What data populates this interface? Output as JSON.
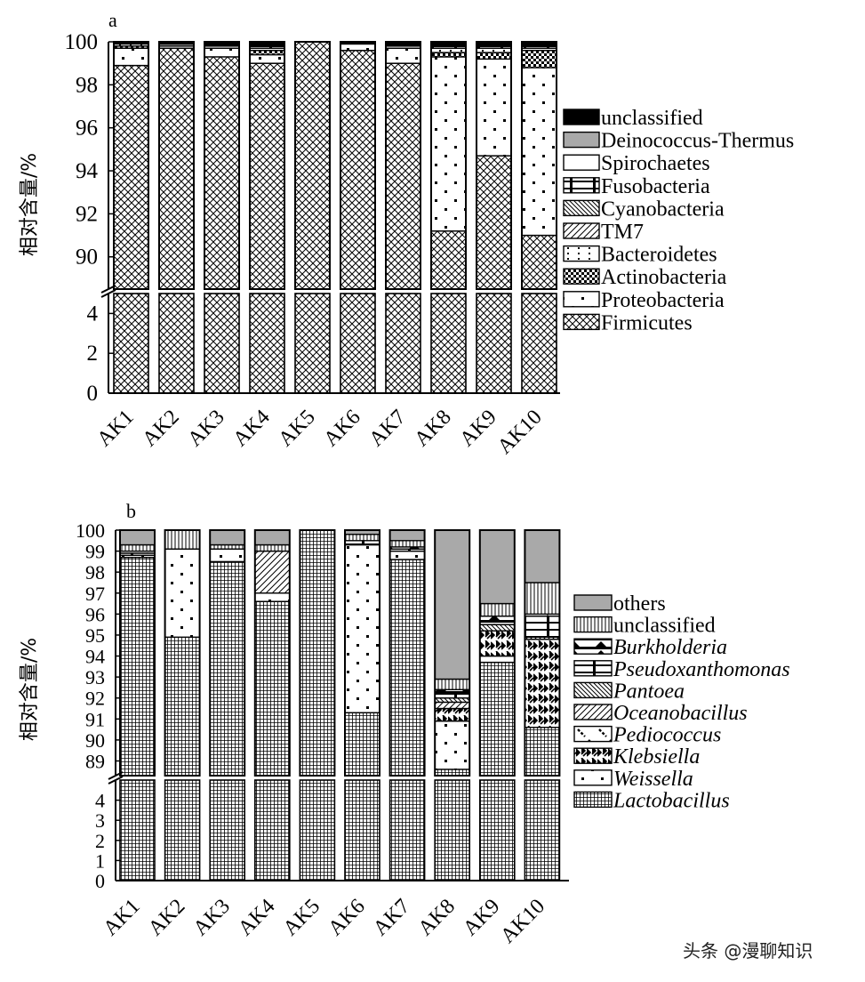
{
  "chart_data": [
    {
      "panel": "a",
      "type": "bar",
      "stacked": true,
      "ylabel": "相对含量/%",
      "broken_axis": {
        "lower_ticks": [
          0,
          2,
          4
        ],
        "upper_ticks": [
          90,
          92,
          94,
          96,
          98,
          100
        ]
      },
      "categories": [
        "AK1",
        "AK2",
        "AK3",
        "AK4",
        "AK5",
        "AK6",
        "AK7",
        "AK8",
        "AK9",
        "AK10"
      ],
      "series": [
        {
          "name": "Firmicutes",
          "pattern": "crosshatch",
          "values": [
            98.9,
            99.7,
            99.3,
            99.0,
            100.0,
            99.6,
            99.0,
            91.2,
            94.7,
            91.0
          ]
        },
        {
          "name": "Proteobacteria",
          "pattern": "dot",
          "values": [
            0.8,
            0.1,
            0.4,
            0.4,
            0.0,
            0.3,
            0.7,
            8.1,
            4.5,
            7.8
          ]
        },
        {
          "name": "Actinobacteria",
          "pattern": "checker",
          "values": [
            0.1,
            0.0,
            0.0,
            0.2,
            0.0,
            0.0,
            0.0,
            0.2,
            0.3,
            0.8
          ]
        },
        {
          "name": "Bacteroidetes",
          "pattern": "sparse-dot",
          "values": [
            0.1,
            0.0,
            0.1,
            0.1,
            0.0,
            0.0,
            0.1,
            0.2,
            0.2,
            0.1
          ]
        },
        {
          "name": "TM7",
          "pattern": "diagonal",
          "values": [
            0.0,
            0.0,
            0.0,
            0.0,
            0.0,
            0.0,
            0.0,
            0.0,
            0.0,
            0.0
          ]
        },
        {
          "name": "Cyanobacteria",
          "pattern": "dense-diagonal",
          "values": [
            0.0,
            0.0,
            0.0,
            0.0,
            0.0,
            0.0,
            0.0,
            0.0,
            0.0,
            0.0
          ]
        },
        {
          "name": "Fusobacteria",
          "pattern": "bar-tick",
          "values": [
            0.0,
            0.0,
            0.0,
            0.1,
            0.0,
            0.0,
            0.0,
            0.1,
            0.1,
            0.1
          ]
        },
        {
          "name": "Spirochaetes",
          "pattern": "blank",
          "values": [
            0.0,
            0.0,
            0.0,
            0.0,
            0.0,
            0.0,
            0.0,
            0.0,
            0.0,
            0.0
          ]
        },
        {
          "name": "Deinococcus-Thermus",
          "pattern": "gray",
          "values": [
            0.0,
            0.1,
            0.0,
            0.0,
            0.0,
            0.0,
            0.0,
            0.0,
            0.0,
            0.0
          ]
        },
        {
          "name": "unclassified",
          "pattern": "black",
          "values": [
            0.1,
            0.1,
            0.2,
            0.2,
            0.0,
            0.1,
            0.2,
            0.2,
            0.2,
            0.2
          ]
        }
      ],
      "legend_order": [
        "unclassified",
        "Deinococcus-Thermus",
        "Spirochaetes",
        "Fusobacteria",
        "Cyanobacteria",
        "TM7",
        "Bacteroidetes",
        "Actinobacteria",
        "Proteobacteria",
        "Firmicutes"
      ]
    },
    {
      "panel": "b",
      "type": "bar",
      "stacked": true,
      "ylabel": "相对含量/%",
      "broken_axis": {
        "lower_ticks": [
          0,
          1,
          2,
          3,
          4
        ],
        "upper_ticks": [
          89,
          90,
          91,
          92,
          93,
          94,
          95,
          96,
          97,
          98,
          99,
          100
        ]
      },
      "categories": [
        "AK1",
        "AK2",
        "AK3",
        "AK4",
        "AK5",
        "AK6",
        "AK7",
        "AK8",
        "AK9",
        "AK10"
      ],
      "series": [
        {
          "name": "Lactobacillus",
          "pattern": "grid",
          "italic": true,
          "values": [
            98.7,
            94.9,
            98.5,
            96.6,
            100.0,
            91.3,
            98.6,
            88.6,
            93.7,
            90.6
          ]
        },
        {
          "name": "Weissella",
          "pattern": "dot",
          "italic": true,
          "values": [
            0.1,
            4.2,
            0.6,
            0.4,
            0.0,
            8.0,
            0.4,
            2.3,
            0.3,
            0.0
          ]
        },
        {
          "name": "Klebsiella",
          "pattern": "dense-zigzag",
          "italic": true,
          "values": [
            0.0,
            0.0,
            0.0,
            0.0,
            0.0,
            0.0,
            0.0,
            0.6,
            1.2,
            4.2
          ]
        },
        {
          "name": "Pediococcus",
          "pattern": "zigzag",
          "italic": true,
          "values": [
            0.0,
            0.0,
            0.0,
            0.0,
            0.0,
            0.0,
            0.0,
            0.0,
            0.0,
            0.0
          ]
        },
        {
          "name": "Oceanobacillus",
          "pattern": "diagonal",
          "italic": true,
          "values": [
            0.0,
            0.0,
            0.0,
            2.0,
            0.0,
            0.0,
            0.0,
            0.3,
            0.0,
            0.0
          ]
        },
        {
          "name": "Pantoea",
          "pattern": "dense-diagonal",
          "italic": true,
          "values": [
            0.0,
            0.0,
            0.0,
            0.0,
            0.0,
            0.0,
            0.0,
            0.2,
            0.3,
            0.1
          ]
        },
        {
          "name": "Pseudoxanthomonas",
          "pattern": "bar-tick",
          "italic": true,
          "values": [
            0.1,
            0.0,
            0.0,
            0.0,
            0.0,
            0.2,
            0.1,
            0.2,
            0.0,
            1.0
          ]
        },
        {
          "name": "Burkholderia",
          "pattern": "triangle",
          "italic": true,
          "values": [
            0.1,
            0.0,
            0.0,
            0.0,
            0.0,
            0.0,
            0.1,
            0.2,
            0.4,
            0.1
          ]
        },
        {
          "name": "unclassified",
          "pattern": "vertical",
          "italic": false,
          "values": [
            0.3,
            0.9,
            0.2,
            0.3,
            0.0,
            0.3,
            0.3,
            0.5,
            0.6,
            1.5
          ]
        },
        {
          "name": "others",
          "pattern": "gray",
          "italic": false,
          "values": [
            0.7,
            0.0,
            0.7,
            0.7,
            0.0,
            0.2,
            0.5,
            7.1,
            3.7,
            2.5
          ]
        }
      ],
      "legend_order": [
        "others",
        "unclassified",
        "Burkholderia",
        "Pseudoxanthomonas",
        "Pantoea",
        "Oceanobacillus",
        "Pediococcus",
        "Klebsiella",
        "Weissella",
        "Lactobacillus"
      ]
    }
  ],
  "watermark": "头条 @漫聊知识"
}
